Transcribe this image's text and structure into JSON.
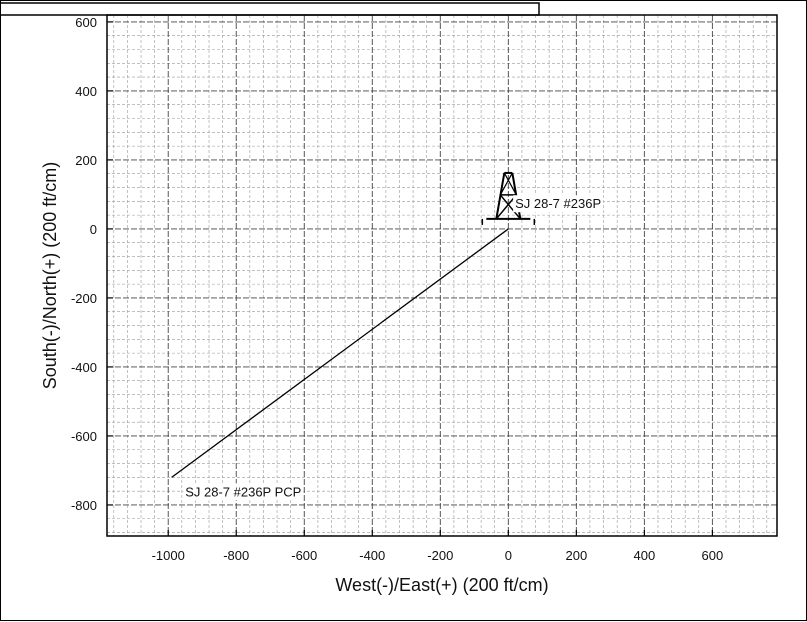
{
  "chart_data": {
    "type": "line",
    "xlabel": "West(-)/East(+) (200 ft/cm)",
    "ylabel": "South(-)/North(+) (200 ft/cm)",
    "xlim": [
      -1180,
      790
    ],
    "ylim": [
      -890,
      620
    ],
    "grid": true,
    "x_ticks": [
      -1000,
      -800,
      -600,
      -400,
      -200,
      0,
      200,
      400,
      600
    ],
    "y_ticks": [
      -800,
      -600,
      -400,
      -200,
      0,
      200,
      400,
      600
    ],
    "x_tick_labels": [
      "-1000",
      "-800",
      "-600",
      "-400",
      "-200",
      "0",
      "200",
      "400",
      "600"
    ],
    "y_tick_labels": [
      "-800",
      "-600",
      "-400",
      "-200",
      "0",
      "200",
      "400",
      "600"
    ],
    "series": [
      {
        "x": [
          0,
          -990
        ],
        "y": [
          0,
          -720
        ]
      }
    ],
    "annotations": [
      {
        "text": "SJ 28-7 #236P",
        "x": 20,
        "y": 60
      },
      {
        "text": "SJ 28-7 #236P PCP",
        "x": -950,
        "y": -775
      }
    ],
    "well_marker": {
      "x": 0,
      "y": 0,
      "icon": "derrick-icon"
    }
  }
}
